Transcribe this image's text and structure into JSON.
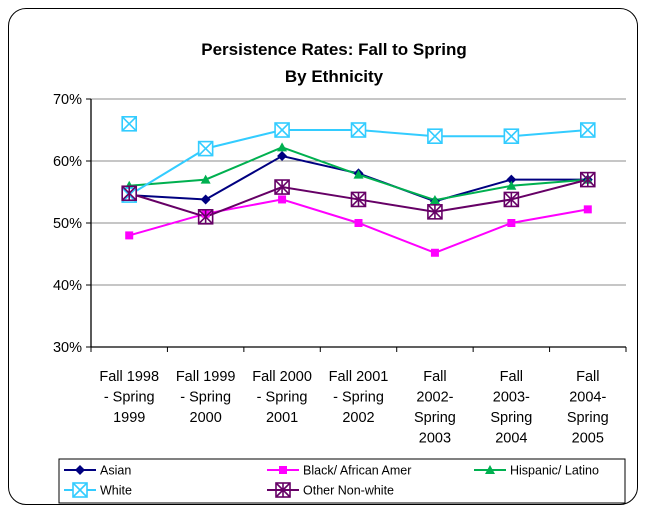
{
  "chart_data": {
    "type": "line",
    "title": "Persistence Rates:  Fall to Spring",
    "subtitle": "By Ethnicity",
    "xlabel": "",
    "ylabel": "",
    "ylim": [
      30,
      70
    ],
    "y_ticks": [
      "30%",
      "40%",
      "50%",
      "60%",
      "70%"
    ],
    "y_tick_values": [
      30,
      40,
      50,
      60,
      70
    ],
    "grid": true,
    "legend_position": "bottom",
    "categories": [
      [
        "Fall 1998",
        "- Spring",
        "1999"
      ],
      [
        "Fall 1999",
        "- Spring",
        "2000"
      ],
      [
        "Fall 2000",
        "- Spring",
        "2001"
      ],
      [
        "Fall 2001",
        "- Spring",
        "2002"
      ],
      [
        "Fall",
        "2002-",
        "Spring",
        "2003"
      ],
      [
        "Fall",
        "2003-",
        "Spring",
        "2004"
      ],
      [
        "Fall",
        "2004-",
        "Spring",
        "2005"
      ]
    ],
    "series": [
      {
        "name": "Asian",
        "color": "#000080",
        "marker": "diamond",
        "values": [
          54.5,
          53.8,
          60.8,
          58,
          53.5,
          57,
          57
        ]
      },
      {
        "name": "Black/ African Amer",
        "color": "#ff00ff",
        "marker": "square",
        "values": [
          48,
          51.5,
          53.8,
          50,
          45.2,
          50,
          52.2
        ]
      },
      {
        "name": "Hispanic/ Latino",
        "color": "#00b050",
        "marker": "triangle",
        "values": [
          56,
          57,
          62.2,
          57.8,
          53.7,
          56,
          57
        ]
      },
      {
        "name": "White",
        "color": "#33ccff",
        "marker": "square-x",
        "values": [
          54.5,
          62,
          65,
          65,
          64,
          64,
          65
        ]
      },
      {
        "name": "Other Non-white",
        "color": "#660066",
        "marker": "square-star",
        "values": [
          54.8,
          51,
          55.8,
          53.8,
          51.8,
          53.8,
          57
        ]
      }
    ],
    "extra_points": [
      {
        "series": "White",
        "category_index": 0,
        "value": 66
      }
    ]
  }
}
